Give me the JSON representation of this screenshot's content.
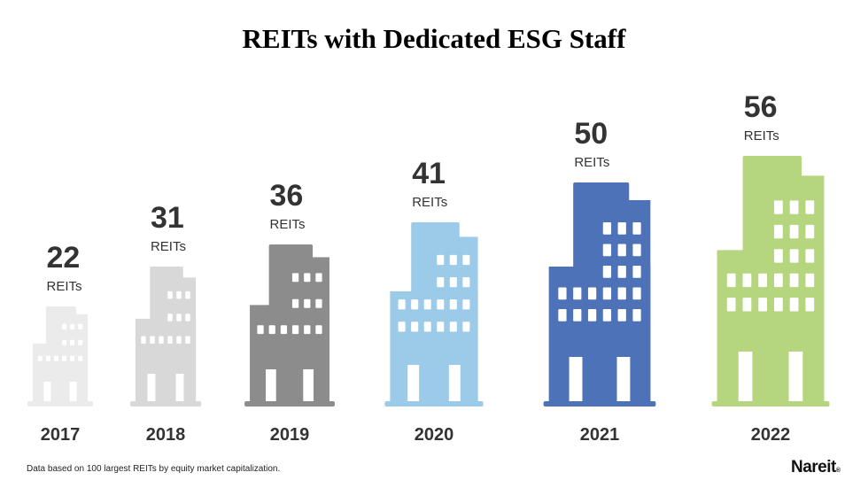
{
  "title": "REITs with Dedicated ESG Staff",
  "footnote": "Data based on 100 largest REITs by equity market capitalization.",
  "logo": "Nareit",
  "logo_mark": "®",
  "chart_data": {
    "type": "bar",
    "title": "REITs with Dedicated ESG Staff",
    "categories": [
      "2017",
      "2018",
      "2019",
      "2020",
      "2021",
      "2022"
    ],
    "values": [
      22,
      31,
      36,
      41,
      50,
      56
    ],
    "unit_label": "REITs",
    "colors": [
      "#ebebeb",
      "#d8d8d8",
      "#8c8c8c",
      "#9ccbea",
      "#4e72b8",
      "#b5d67e"
    ]
  }
}
